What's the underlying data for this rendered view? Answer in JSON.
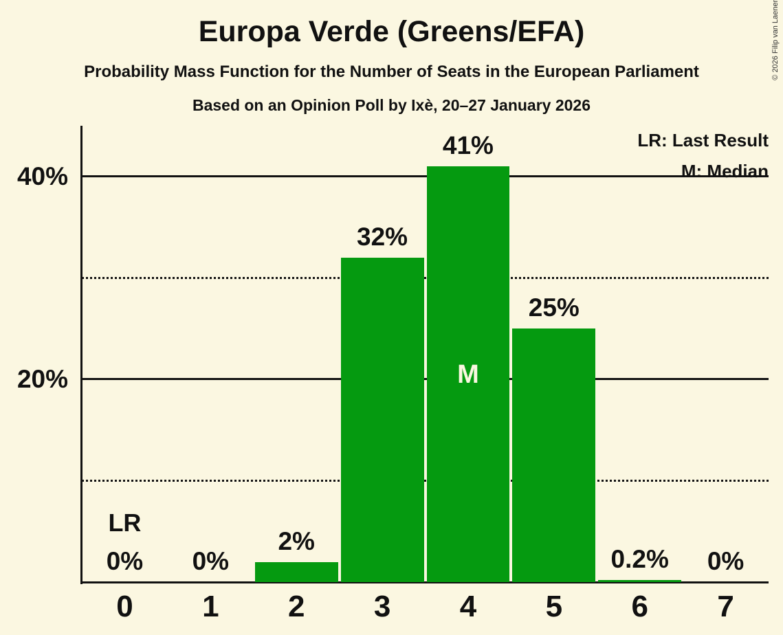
{
  "header": {
    "title": "Europa Verde (Greens/EFA)",
    "subtitle": "Probability Mass Function for the Number of Seats in the European Parliament",
    "poll_line": "Based on an Opinion Poll by Ixè, 20–27 January 2026"
  },
  "legend": {
    "items": [
      {
        "label": "LR: Last Result"
      },
      {
        "label": "M: Median"
      }
    ]
  },
  "copyright": "© 2026 Filip van Laenen",
  "chart_data": {
    "type": "bar",
    "title": "Europa Verde (Greens/EFA)",
    "subtitle": "Probability Mass Function for the Number of Seats in the European Parliament",
    "source_line": "Based on an Opinion Poll by Ixè, 20–27 January 2026",
    "categories": [
      "0",
      "1",
      "2",
      "3",
      "4",
      "5",
      "6",
      "7"
    ],
    "values": [
      0,
      0,
      2,
      32,
      41,
      25,
      0.2,
      0
    ],
    "value_labels": [
      "0%",
      "0%",
      "2%",
      "32%",
      "41%",
      "25%",
      "0.2%",
      "0%"
    ],
    "xlabel": "",
    "ylabel": "",
    "ylim": [
      0,
      45
    ],
    "grid": "horizontal",
    "legend_position": "top-right",
    "yticks": [
      {
        "value": 40,
        "label": "40%",
        "line": "solid"
      },
      {
        "value": 30,
        "label": "",
        "line": "dotted"
      },
      {
        "value": 20,
        "label": "20%",
        "line": "solid"
      },
      {
        "value": 10,
        "label": "",
        "line": "dotted"
      }
    ],
    "annotations": {
      "last_result": {
        "category": "0",
        "label": "LR"
      },
      "median": {
        "category": "4",
        "label": "M"
      }
    },
    "colors": {
      "bar": "#059a10",
      "background": "#fbf7e1",
      "text": "#111111",
      "median_label": "#fbf7e1",
      "copyright": "#333333"
    }
  }
}
